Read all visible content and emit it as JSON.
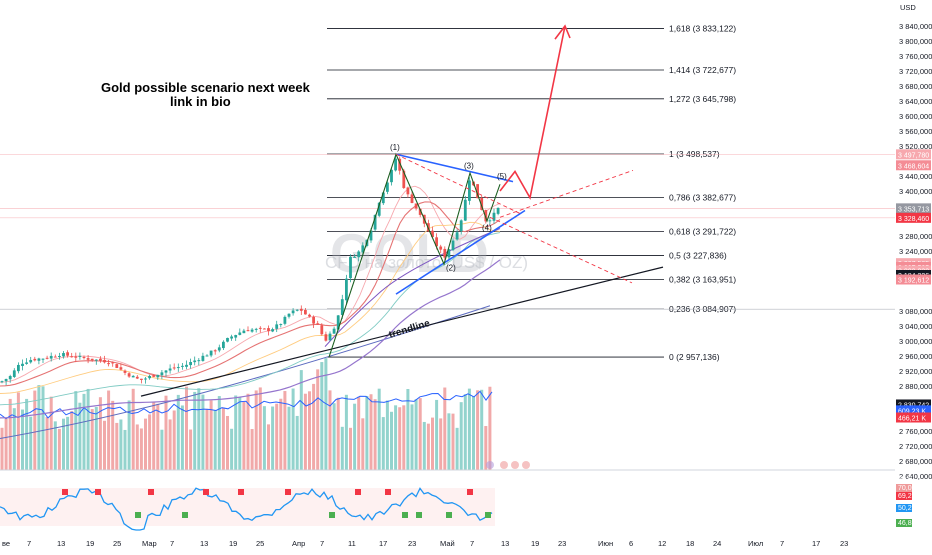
{
  "annotation": {
    "title_line1": "Gold possible scenario next week",
    "title_line2": "link in bio",
    "trendline": "trendline"
  },
  "watermark": {
    "symbol": "GOLD",
    "description": "CFD на золото (US$ / OZ)"
  },
  "colors": {
    "up": "#26a69a",
    "down": "#ef5350",
    "fib": "#787b86",
    "channel": "#2962ff",
    "projection": "#f23645",
    "trend": "#131722",
    "wave_line": "#1b5e20"
  },
  "chart_data": {
    "type": "candlestick",
    "currency_label": "USD",
    "y_axis": {
      "ticks": [
        3840,
        3800,
        3760,
        3720,
        3680,
        3640,
        3600,
        3560,
        3520,
        3440,
        3400,
        3280,
        3240,
        3080,
        3040,
        3000,
        2960,
        2920,
        2880,
        2760,
        2720,
        2680,
        2640
      ],
      "tick_labels": [
        "3 840,000",
        "3 800,000",
        "3 760,000",
        "3 720,000",
        "3 680,000",
        "3 640,000",
        "3 600,000",
        "3 560,000",
        "3 520,000",
        "3 440,000",
        "3 400,000",
        "3 280,000",
        "3 240,000",
        "3 080,000",
        "3 040,000",
        "3 000,000",
        "2 960,000",
        "2 920,000",
        "2 880,000",
        "2 760,000",
        "2 720,000",
        "2 680,000",
        "2 640,000"
      ],
      "ylim": [
        2630,
        3862
      ]
    },
    "price_tags": [
      {
        "value": 3497.78,
        "label": "3 497,780",
        "color": "#f7a8ae"
      },
      {
        "value": 3468.604,
        "label": "3 468,604",
        "color": "#f48c95"
      },
      {
        "value": 3353.713,
        "label": "3 353,713",
        "color": "#9598a1"
      },
      {
        "value": 3328.46,
        "label": "3 328,460",
        "color": "#f23645"
      },
      {
        "value": 3207.585,
        "label": "3 207,585",
        "color": "#f7a8ae"
      },
      {
        "value": 3197.5,
        "label": "3 207,585",
        "color": "#f48c95"
      },
      {
        "value": 3188.0,
        "label": "3 202,032",
        "color": "#f7a8ae"
      },
      {
        "value": 3176.0,
        "label": "3 184,226",
        "color": "#131722"
      },
      {
        "value": 3164.0,
        "label": "3 192,612",
        "color": "#f48c95"
      },
      {
        "value": 2830.742,
        "label": "2 830,742",
        "color": "#131722"
      },
      {
        "value": 2815.0,
        "label": "609,23 K",
        "color": "#2962ff"
      },
      {
        "value": 2796.0,
        "label": "466,21 K",
        "color": "#f23645"
      }
    ],
    "fib_levels": [
      {
        "ratio": "1,618",
        "price": 3833.122,
        "label": "1,618 (3 833,122)"
      },
      {
        "ratio": "1,414",
        "price": 3722.677,
        "label": "1,414 (3 722,677)"
      },
      {
        "ratio": "1,272",
        "price": 3645.798,
        "label": "1,272 (3 645,798)"
      },
      {
        "ratio": "1",
        "price": 3498.537,
        "label": "1 (3 498,537)"
      },
      {
        "ratio": "0,786",
        "price": 3382.677,
        "label": "0,786 (3 382,677)"
      },
      {
        "ratio": "0,618",
        "price": 3291.722,
        "label": "0,618 (3 291,722)"
      },
      {
        "ratio": "0,5",
        "price": 3227.836,
        "label": "0,5 (3 227,836)"
      },
      {
        "ratio": "0,382",
        "price": 3163.951,
        "label": "0,382 (3 163,951)"
      },
      {
        "ratio": "0,236",
        "price": 3084.907,
        "label": "0,236 (3 084,907)"
      },
      {
        "ratio": "0",
        "price": 2957.136,
        "label": "0 (2 957,136)"
      }
    ],
    "wave_labels": [
      "(1)",
      "(2)",
      "(3)",
      "(4)",
      "(5)"
    ],
    "x_axis": {
      "ticks": [
        "ве",
        "7",
        "13",
        "19",
        "25",
        "Мар",
        "7",
        "13",
        "19",
        "25",
        "Апр",
        "7",
        "11",
        "17",
        "23",
        "Май",
        "7",
        "13",
        "19",
        "23",
        "Июн",
        "6",
        "12",
        "18",
        "24",
        "Июл",
        "7",
        "17",
        "23"
      ]
    },
    "oscillator": {
      "ticks": [
        "80,0",
        "70,0",
        "69,2",
        "50,2",
        "50,0",
        "46,8",
        "30,0"
      ],
      "tag_colors": [
        "#ffffff",
        "#ef9a9a",
        "#f23645",
        "#2196f3",
        "#ffffff",
        "#4caf50",
        "#ffffff"
      ]
    }
  }
}
